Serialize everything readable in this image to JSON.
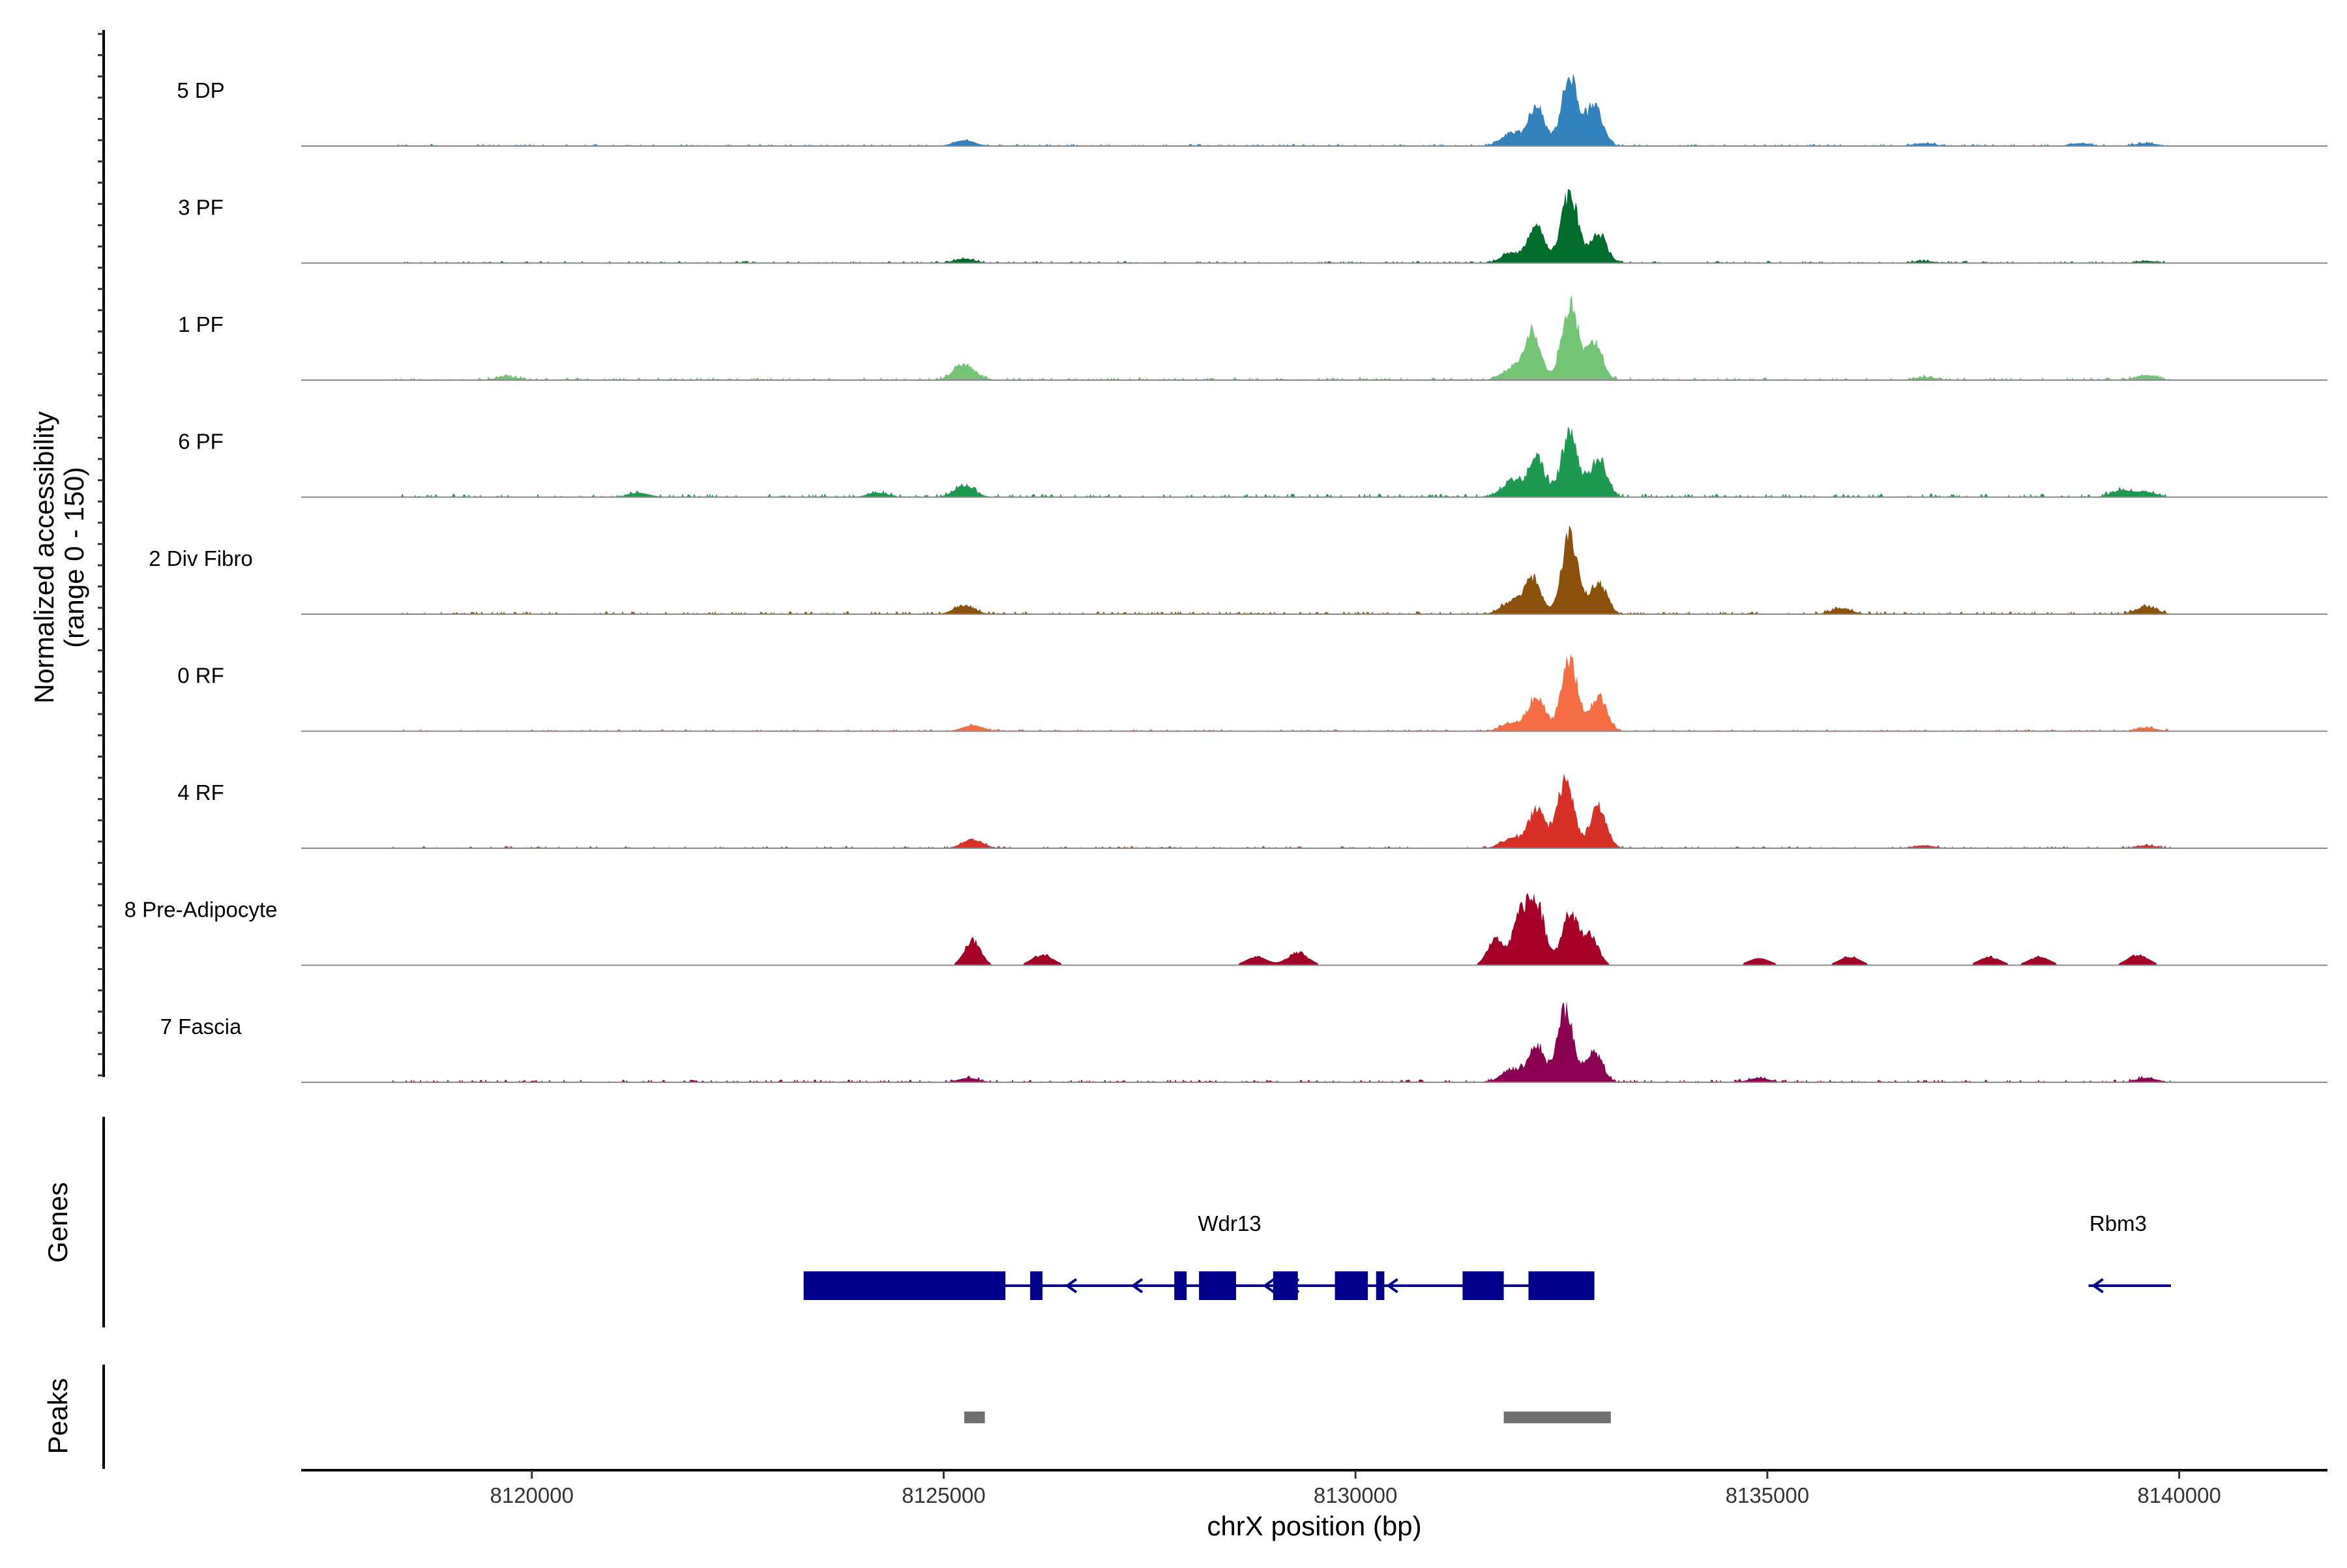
{
  "chart_data": {
    "type": "area",
    "chromosome": "chrX",
    "xlabel": "chrX position (bp)",
    "ylabel": "Normalized accessibility",
    "ylabel_range": "(range 0 - 150)",
    "ylim": [
      0,
      150
    ],
    "xlim": [
      8117200,
      8141800
    ],
    "x_ticks": [
      8120000,
      8125000,
      8130000,
      8135000,
      8140000
    ],
    "x_tick_labels": [
      "8120000",
      "8125000",
      "8130000",
      "8135000",
      "8140000"
    ],
    "region": [
      8118300,
      8139900
    ],
    "tracks": [
      {
        "name": "5 DP",
        "color": "#3182bd",
        "peaks": [
          [
            8132200,
            55
          ],
          [
            8132600,
            95
          ],
          [
            8132900,
            58
          ],
          [
            8131900,
            18
          ],
          [
            8125250,
            8
          ],
          [
            8136900,
            4
          ],
          [
            8138800,
            4
          ],
          [
            8139600,
            4
          ]
        ],
        "bg": 3
      },
      {
        "name": "3 PF",
        "color": "#006d2c",
        "peaks": [
          [
            8132200,
            48
          ],
          [
            8132600,
            100
          ],
          [
            8132950,
            42
          ],
          [
            8131900,
            14
          ],
          [
            8125250,
            6
          ],
          [
            8136900,
            3
          ],
          [
            8139600,
            3
          ]
        ],
        "bg": 3
      },
      {
        "name": "1 PF",
        "color": "#74c476",
        "peaks": [
          [
            8132150,
            65
          ],
          [
            8132600,
            105
          ],
          [
            8132900,
            52
          ],
          [
            8131900,
            16
          ],
          [
            8125250,
            22
          ],
          [
            8119700,
            5
          ],
          [
            8136900,
            4
          ],
          [
            8139600,
            7
          ]
        ],
        "bg": 4
      },
      {
        "name": "6 PF",
        "color": "#1d9a50",
        "peaks": [
          [
            8132200,
            55
          ],
          [
            8132600,
            90
          ],
          [
            8132950,
            55
          ],
          [
            8131900,
            22
          ],
          [
            8125250,
            15
          ],
          [
            8121300,
            6
          ],
          [
            8124200,
            6
          ],
          [
            8139300,
            9
          ],
          [
            8139600,
            7
          ]
        ],
        "bg": 5
      },
      {
        "name": "2 Div Fibro",
        "color": "#8c510a",
        "peaks": [
          [
            8132150,
            48
          ],
          [
            8132600,
            110
          ],
          [
            8132950,
            45
          ],
          [
            8131900,
            18
          ],
          [
            8125250,
            12
          ],
          [
            8135900,
            8
          ],
          [
            8139600,
            10
          ]
        ],
        "bg": 4
      },
      {
        "name": "0 RF",
        "color": "#f46d43",
        "peaks": [
          [
            8132200,
            50
          ],
          [
            8132600,
            100
          ],
          [
            8132950,
            48
          ],
          [
            8131900,
            12
          ],
          [
            8125350,
            8
          ],
          [
            8139600,
            5
          ]
        ],
        "bg": 3
      },
      {
        "name": "4 RF",
        "color": "#d73027",
        "peaks": [
          [
            8132200,
            55
          ],
          [
            8132550,
            95
          ],
          [
            8132950,
            58
          ],
          [
            8131900,
            14
          ],
          [
            8125350,
            12
          ],
          [
            8136900,
            4
          ],
          [
            8139600,
            4
          ]
        ],
        "bg": 3
      },
      {
        "name": "8 Pre-Adipocyte",
        "color": "#a50026",
        "peaks": [
          [
            8132000,
            65
          ],
          [
            8132200,
            85
          ],
          [
            8132600,
            70
          ],
          [
            8132850,
            40
          ],
          [
            8131700,
            35
          ],
          [
            8125350,
            35
          ],
          [
            8126200,
            15
          ],
          [
            8129300,
            18
          ],
          [
            8128800,
            12
          ],
          [
            8139500,
            15
          ],
          [
            8137700,
            12
          ],
          [
            8138300,
            12
          ],
          [
            8136000,
            12
          ],
          [
            8134900,
            10
          ]
        ],
        "bg": 0
      },
      {
        "name": "7 Fascia",
        "color": "#8c0052",
        "peaks": [
          [
            8132200,
            50
          ],
          [
            8132550,
            100
          ],
          [
            8132900,
            42
          ],
          [
            8131900,
            18
          ],
          [
            8125300,
            6
          ],
          [
            8134900,
            6
          ],
          [
            8139600,
            6
          ]
        ],
        "bg": 4
      }
    ],
    "genes": [
      {
        "name": "Wdr13",
        "start": 8123300,
        "end": 8132900,
        "strand": "-",
        "exons": [
          [
            8123300,
            8125750
          ],
          [
            8126050,
            8126200
          ],
          [
            8127800,
            8127950
          ],
          [
            8128100,
            8128550
          ],
          [
            8129000,
            8129300
          ],
          [
            8129750,
            8130150
          ],
          [
            8130250,
            8130350
          ],
          [
            8131300,
            8131800
          ],
          [
            8132100,
            8132900
          ]
        ]
      },
      {
        "name": "Rbm3",
        "start": 8138900,
        "end": 8139900,
        "strand": "-",
        "exons": []
      }
    ],
    "genes_label": "Genes",
    "peaks_label": "Peaks",
    "peak_regions": [
      [
        8125250,
        8125500
      ],
      [
        8131800,
        8133100
      ]
    ]
  }
}
